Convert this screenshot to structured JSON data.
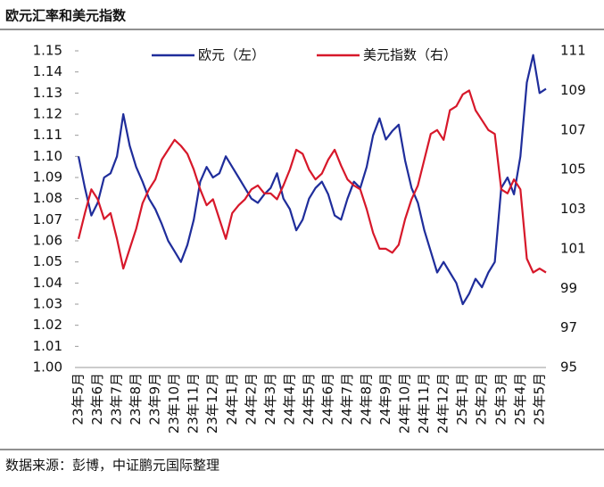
{
  "chart_data": {
    "type": "line",
    "title": "欧元汇率和美元指数",
    "source": "数据来源：彭博，中证鹏元国际整理",
    "categories": [
      "23年5月",
      null,
      null,
      "23年6月",
      null,
      null,
      "23年7月",
      null,
      null,
      "23年8月",
      null,
      null,
      "23年9月",
      null,
      null,
      "23年10月",
      null,
      null,
      "23年11月",
      null,
      null,
      "23年12月",
      null,
      null,
      "24年1月",
      null,
      null,
      "24年2月",
      null,
      null,
      "24年3月",
      null,
      null,
      "24年4月",
      null,
      null,
      "24年5月",
      null,
      null,
      "24年6月",
      null,
      null,
      "24年7月",
      null,
      null,
      "24年8月",
      null,
      null,
      "24年9月",
      null,
      null,
      "24年10月",
      null,
      null,
      "24年11月",
      null,
      null,
      "24年12月",
      null,
      null,
      "25年1月",
      null,
      null,
      "25年2月",
      null,
      null,
      "25年3月",
      null,
      null,
      "25年4月",
      null,
      null,
      "25年5月",
      null
    ],
    "series": [
      {
        "name": "欧元（左）",
        "color": "#1f2d9b",
        "values": [
          1.1,
          1.085,
          1.072,
          1.078,
          1.09,
          1.092,
          1.1,
          1.12,
          1.105,
          1.095,
          1.088,
          1.08,
          1.075,
          1.068,
          1.06,
          1.055,
          1.05,
          1.058,
          1.07,
          1.088,
          1.095,
          1.09,
          1.092,
          1.1,
          1.095,
          1.09,
          1.085,
          1.08,
          1.078,
          1.082,
          1.085,
          1.092,
          1.08,
          1.075,
          1.065,
          1.07,
          1.08,
          1.085,
          1.088,
          1.082,
          1.072,
          1.07,
          1.08,
          1.088,
          1.085,
          1.095,
          1.11,
          1.118,
          1.108,
          1.112,
          1.115,
          1.098,
          1.085,
          1.078,
          1.065,
          1.055,
          1.045,
          1.05,
          1.045,
          1.04,
          1.03,
          1.035,
          1.042,
          1.038,
          1.045,
          1.05,
          1.085,
          1.09,
          1.082,
          1.1,
          1.135,
          1.148,
          1.13,
          1.132
        ]
      },
      {
        "name": "美元指数（右）",
        "color": "#d7182a",
        "axis": "y2",
        "values": [
          101.5,
          102.8,
          104.0,
          103.5,
          102.5,
          102.8,
          101.5,
          100.0,
          101.0,
          102.0,
          103.3,
          104.0,
          104.5,
          105.5,
          106.0,
          106.5,
          106.2,
          105.8,
          105.0,
          104.0,
          103.2,
          103.5,
          102.5,
          101.5,
          102.8,
          103.2,
          103.5,
          104.0,
          104.2,
          103.8,
          103.8,
          103.5,
          104.2,
          105.0,
          106.0,
          105.8,
          105.0,
          104.5,
          104.8,
          105.5,
          106.0,
          105.2,
          104.5,
          104.2,
          104.0,
          103.0,
          101.8,
          101.0,
          101.0,
          100.8,
          101.2,
          102.5,
          103.5,
          104.2,
          105.5,
          106.8,
          107.0,
          106.5,
          108.0,
          108.2,
          108.8,
          109.0,
          108.0,
          107.5,
          107.0,
          106.8,
          104.0,
          103.8,
          104.5,
          104.0,
          100.5,
          99.8,
          100.0,
          99.8
        ]
      }
    ],
    "ylim": [
      1.0,
      1.15
    ],
    "yticks": [
      {
        "value": 1.0,
        "label": "1.00"
      },
      1.01,
      1.02,
      1.03,
      1.04,
      1.05,
      1.06,
      1.07,
      1.08,
      1.09,
      {
        "value": 1.1,
        "label": "1.10"
      },
      1.11,
      1.12,
      1.13,
      1.14,
      1.15
    ],
    "y2lim": [
      95,
      111
    ],
    "y2ticks": [
      95,
      97,
      99,
      101,
      103,
      105,
      107,
      109,
      111
    ]
  }
}
